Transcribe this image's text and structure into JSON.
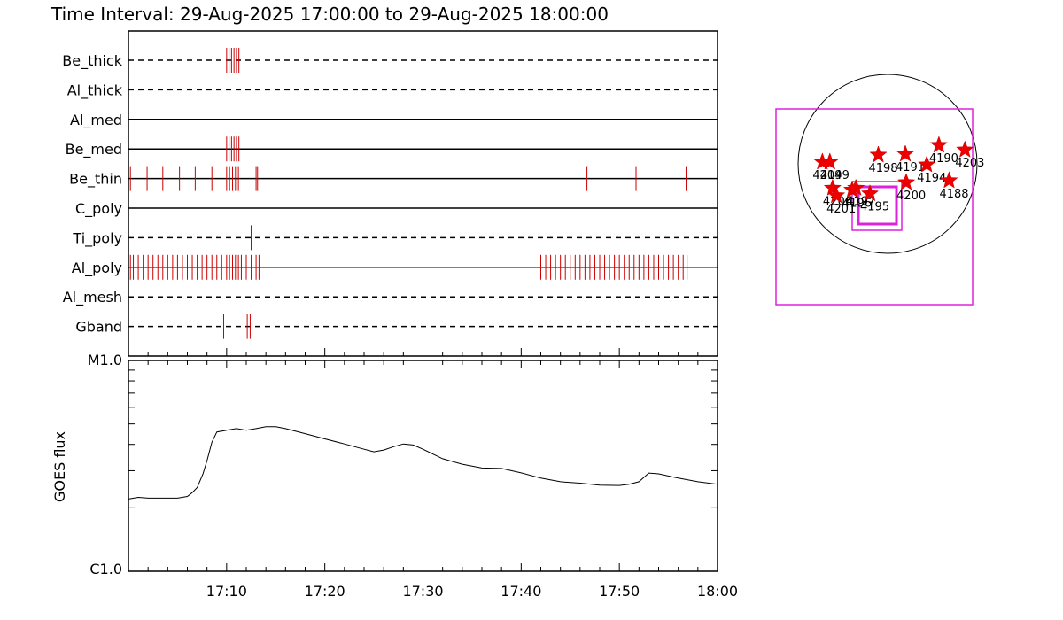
{
  "title": "Time Interval: 29-Aug-2025 17:00:00 to 29-Aug-2025 18:00:00",
  "chart_data": [
    {
      "type": "timeline",
      "name": "filter-timeline",
      "x_range_minutes": [
        0,
        60
      ],
      "rows": [
        {
          "label": "Be_thick",
          "style": "dashed",
          "events": [
            {
              "t": 10.0,
              "color": "#cc0000"
            },
            {
              "t": 10.25,
              "color": "#cc0000"
            },
            {
              "t": 10.5,
              "color": "#cc0000"
            },
            {
              "t": 10.75,
              "color": "#cc0000"
            },
            {
              "t": 11.0,
              "color": "#cc0000"
            },
            {
              "t": 11.25,
              "color": "#cc0000"
            }
          ]
        },
        {
          "label": "Al_thick",
          "style": "dashed",
          "events": []
        },
        {
          "label": "Al_med",
          "style": "solid",
          "events": []
        },
        {
          "label": "Be_med",
          "style": "solid",
          "events": [
            {
              "t": 10.0,
              "color": "#cc0000"
            },
            {
              "t": 10.25,
              "color": "#cc0000"
            },
            {
              "t": 10.5,
              "color": "#cc0000"
            },
            {
              "t": 10.75,
              "color": "#cc0000"
            },
            {
              "t": 11.0,
              "color": "#cc0000"
            },
            {
              "t": 11.25,
              "color": "#cc0000"
            }
          ]
        },
        {
          "label": "Be_thin",
          "style": "solid",
          "events": [
            {
              "t": 0.2,
              "color": "#cc0000"
            },
            {
              "t": 1.9,
              "color": "#cc0000"
            },
            {
              "t": 3.5,
              "color": "#cc0000"
            },
            {
              "t": 5.2,
              "color": "#cc0000"
            },
            {
              "t": 6.8,
              "color": "#cc0000"
            },
            {
              "t": 8.5,
              "color": "#cc0000"
            },
            {
              "t": 10.0,
              "color": "#cc0000"
            },
            {
              "t": 10.3,
              "color": "#cc0000"
            },
            {
              "t": 10.6,
              "color": "#cc0000"
            },
            {
              "t": 10.9,
              "color": "#cc0000"
            },
            {
              "t": 11.2,
              "color": "#cc0000"
            },
            {
              "t": 13.0,
              "color": "#cc0000"
            },
            {
              "t": 13.15,
              "color": "#cc0000"
            },
            {
              "t": 46.7,
              "color": "#cc0000"
            },
            {
              "t": 51.7,
              "color": "#cc0000"
            },
            {
              "t": 56.8,
              "color": "#cc0000"
            }
          ]
        },
        {
          "label": "C_poly",
          "style": "solid",
          "events": []
        },
        {
          "label": "Ti_poly",
          "style": "dashed",
          "events": [
            {
              "t": 12.5,
              "color": "#2a2a88"
            }
          ]
        },
        {
          "label": "Al_poly",
          "style": "solid",
          "events": [
            {
              "t": 0.2,
              "color": "#cc0000"
            },
            {
              "t": 0.5,
              "color": "#cc0000"
            },
            {
              "t": 1.0,
              "color": "#cc0000"
            },
            {
              "t": 1.5,
              "color": "#cc0000"
            },
            {
              "t": 2.0,
              "color": "#cc0000"
            },
            {
              "t": 2.5,
              "color": "#cc0000"
            },
            {
              "t": 3.0,
              "color": "#cc0000"
            },
            {
              "t": 3.5,
              "color": "#cc0000"
            },
            {
              "t": 4.0,
              "color": "#cc0000"
            },
            {
              "t": 4.5,
              "color": "#cc0000"
            },
            {
              "t": 5.0,
              "color": "#cc0000"
            },
            {
              "t": 5.5,
              "color": "#cc0000"
            },
            {
              "t": 6.0,
              "color": "#cc0000"
            },
            {
              "t": 6.5,
              "color": "#cc0000"
            },
            {
              "t": 7.0,
              "color": "#cc0000"
            },
            {
              "t": 7.5,
              "color": "#cc0000"
            },
            {
              "t": 8.0,
              "color": "#cc0000"
            },
            {
              "t": 8.5,
              "color": "#cc0000"
            },
            {
              "t": 9.0,
              "color": "#cc0000"
            },
            {
              "t": 9.5,
              "color": "#cc0000"
            },
            {
              "t": 10.0,
              "color": "#cc0000"
            },
            {
              "t": 10.3,
              "color": "#cc0000"
            },
            {
              "t": 10.6,
              "color": "#cc0000"
            },
            {
              "t": 10.9,
              "color": "#cc0000"
            },
            {
              "t": 11.2,
              "color": "#cc0000"
            },
            {
              "t": 11.5,
              "color": "#cc0000"
            },
            {
              "t": 12.0,
              "color": "#cc0000"
            },
            {
              "t": 12.5,
              "color": "#cc0000"
            },
            {
              "t": 13.0,
              "color": "#cc0000"
            },
            {
              "t": 13.3,
              "color": "#cc0000"
            },
            {
              "t": 42.0,
              "color": "#cc0000"
            },
            {
              "t": 42.5,
              "color": "#cc0000"
            },
            {
              "t": 43.0,
              "color": "#cc0000"
            },
            {
              "t": 43.5,
              "color": "#cc0000"
            },
            {
              "t": 44.0,
              "color": "#cc0000"
            },
            {
              "t": 44.5,
              "color": "#cc0000"
            },
            {
              "t": 45.0,
              "color": "#cc0000"
            },
            {
              "t": 45.5,
              "color": "#cc0000"
            },
            {
              "t": 46.0,
              "color": "#cc0000"
            },
            {
              "t": 46.5,
              "color": "#cc0000"
            },
            {
              "t": 47.0,
              "color": "#cc0000"
            },
            {
              "t": 47.5,
              "color": "#cc0000"
            },
            {
              "t": 48.0,
              "color": "#cc0000"
            },
            {
              "t": 48.5,
              "color": "#cc0000"
            },
            {
              "t": 49.0,
              "color": "#cc0000"
            },
            {
              "t": 49.5,
              "color": "#cc0000"
            },
            {
              "t": 50.0,
              "color": "#cc0000"
            },
            {
              "t": 50.5,
              "color": "#cc0000"
            },
            {
              "t": 51.0,
              "color": "#cc0000"
            },
            {
              "t": 51.5,
              "color": "#cc0000"
            },
            {
              "t": 52.0,
              "color": "#cc0000"
            },
            {
              "t": 52.5,
              "color": "#cc0000"
            },
            {
              "t": 53.0,
              "color": "#cc0000"
            },
            {
              "t": 53.5,
              "color": "#cc0000"
            },
            {
              "t": 54.0,
              "color": "#cc0000"
            },
            {
              "t": 54.5,
              "color": "#cc0000"
            },
            {
              "t": 55.0,
              "color": "#cc0000"
            },
            {
              "t": 55.5,
              "color": "#cc0000"
            },
            {
              "t": 56.0,
              "color": "#cc0000"
            },
            {
              "t": 56.5,
              "color": "#cc0000"
            },
            {
              "t": 56.9,
              "color": "#cc0000"
            }
          ]
        },
        {
          "label": "Al_mesh",
          "style": "dashed",
          "events": []
        },
        {
          "label": "Gband",
          "style": "dashed",
          "events": [
            {
              "t": 9.7,
              "color": "#cc0000"
            },
            {
              "t": 12.1,
              "color": "#cc0000"
            },
            {
              "t": 12.4,
              "color": "#cc0000"
            }
          ]
        }
      ]
    },
    {
      "type": "line",
      "name": "goes-flux",
      "ylabel": "GOES flux",
      "y_scale": "log",
      "ylim_labels": [
        "C1.0",
        "M1.0"
      ],
      "ylim_log10": [
        0,
        1
      ],
      "x_tick_labels": [
        "17:10",
        "17:20",
        "17:30",
        "17:40",
        "17:50",
        "18:00"
      ],
      "x_tick_minutes": [
        10,
        20,
        30,
        40,
        50,
        60
      ],
      "series": [
        {
          "x": [
            0,
            1,
            2,
            3,
            4,
            5,
            6,
            6.5,
            7,
            7.6,
            8,
            8.5,
            9,
            10,
            11,
            12,
            13,
            14,
            15,
            16,
            18,
            20,
            22,
            24,
            25,
            26,
            27,
            28,
            29,
            30,
            32,
            34,
            36,
            38,
            40,
            42,
            44,
            46,
            48,
            50,
            51,
            52,
            53,
            54,
            56,
            58,
            60
          ],
          "y": [
            0.343,
            0.351,
            0.347,
            0.347,
            0.347,
            0.347,
            0.355,
            0.373,
            0.397,
            0.463,
            0.525,
            0.612,
            0.661,
            0.669,
            0.677,
            0.669,
            0.677,
            0.686,
            0.686,
            0.677,
            0.653,
            0.628,
            0.604,
            0.579,
            0.567,
            0.575,
            0.591,
            0.604,
            0.599,
            0.579,
            0.534,
            0.508,
            0.49,
            0.488,
            0.467,
            0.442,
            0.425,
            0.418,
            0.409,
            0.407,
            0.413,
            0.425,
            0.466,
            0.462,
            0.442,
            0.425,
            0.413
          ]
        }
      ]
    },
    {
      "type": "scatter",
      "name": "active-region-map",
      "points": [
        {
          "label": "4204",
          "x": -700,
          "y": 20
        },
        {
          "label": "4199",
          "x": -620,
          "y": 20
        },
        {
          "label": "4198",
          "x": -100,
          "y": 95
        },
        {
          "label": "4191",
          "x": 190,
          "y": 105
        },
        {
          "label": "4190",
          "x": 550,
          "y": 200
        },
        {
          "label": "4203",
          "x": 830,
          "y": 150
        },
        {
          "label": "4194",
          "x": 420,
          "y": -10
        },
        {
          "label": "4188",
          "x": 660,
          "y": -180
        },
        {
          "label": "4200",
          "x": 200,
          "y": -200
        },
        {
          "label": "4206",
          "x": -590,
          "y": -260
        },
        {
          "label": "4201",
          "x": -550,
          "y": -340
        },
        {
          "label": "4196",
          "x": -380,
          "y": -280
        },
        {
          "label": "4197",
          "x": -340,
          "y": -260
        },
        {
          "label": "4195",
          "x": -190,
          "y": -320
        }
      ],
      "fov_colors": {
        "frame": "#dd22dd"
      }
    }
  ]
}
